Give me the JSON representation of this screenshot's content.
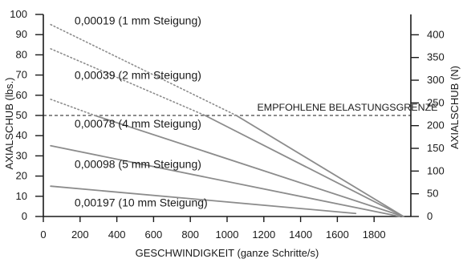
{
  "chart_data": {
    "type": "line",
    "xlabel": "GESCHWINDIGKEIT (ganze Schritte/s)",
    "ylabel": "AXIALSCHUB (lbs.)",
    "ylabel_right": "AXIALSCHUB (N)",
    "xlim": [
      0,
      2000
    ],
    "ylim": [
      0,
      100
    ],
    "ylim_right_N": [
      0,
      444.8
    ],
    "x_ticks": [
      0,
      200,
      400,
      600,
      800,
      1000,
      1200,
      1400,
      1600,
      1800
    ],
    "y_ticks": [
      0,
      10,
      20,
      30,
      40,
      50,
      60,
      70,
      80,
      90,
      100
    ],
    "y_right_ticks": [
      0,
      50,
      100,
      150,
      200,
      250,
      300,
      350,
      400
    ],
    "grid": false,
    "legend": "none",
    "annotations": [
      {
        "text": "EMPFOHLENE BELASTUNGSGRENZE",
        "y": 50,
        "style": "dashed-line"
      }
    ],
    "series": [
      {
        "name": "0,00019 (1 mm Steigung)",
        "x": [
          40,
          1050,
          1960
        ],
        "y": [
          95,
          50,
          0
        ],
        "dotted_until": 1050
      },
      {
        "name": "0,00039 (2 mm Steigung)",
        "x": [
          40,
          880,
          1960
        ],
        "y": [
          83,
          50,
          0
        ],
        "dotted_until": 880
      },
      {
        "name": "0,00078 (4 mm Steigung)",
        "x": [
          40,
          280,
          1960
        ],
        "y": [
          58,
          50,
          0
        ],
        "dotted_until": 280
      },
      {
        "name": "0,00098 (5 mm Steigung)",
        "x": [
          40,
          1940
        ],
        "y": [
          35,
          0
        ]
      },
      {
        "name": "0,00197 (10 mm Steigung)",
        "x": [
          40,
          1700
        ],
        "y": [
          15,
          1.5
        ]
      }
    ],
    "series_label_anchor": [
      {
        "x": 170,
        "y": 97
      },
      {
        "x": 170,
        "y": 70
      },
      {
        "x": 170,
        "y": 46
      },
      {
        "x": 170,
        "y": 26
      },
      {
        "x": 170,
        "y": 7
      }
    ],
    "colors": {
      "line": "#8c8c8c",
      "axis": "#1a1a1a",
      "text": "#1a1a1a"
    }
  }
}
